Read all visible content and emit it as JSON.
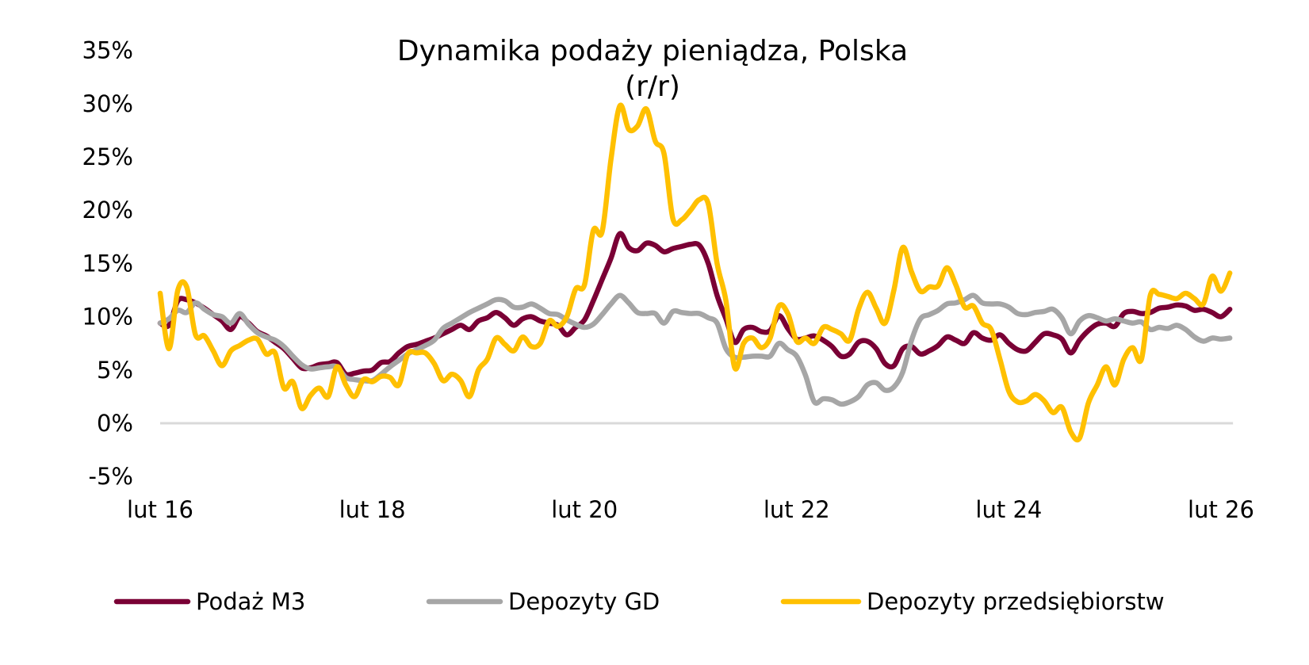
{
  "chart_data": {
    "type": "line",
    "title": "Dynamika podaży pieniądza, Polska",
    "subtitle": "(r/r)",
    "xlabel": "",
    "ylabel": "",
    "x_start": "2016-02",
    "x_end": "2026-03",
    "x_frequency": "monthly",
    "x_tick_labels": [
      "lut 16",
      "lut 18",
      "lut 20",
      "lut 22",
      "lut 24",
      "lut 26"
    ],
    "x_tick_dates": [
      "2016-02",
      "2018-02",
      "2020-02",
      "2022-02",
      "2024-02",
      "2026-02"
    ],
    "y_tick_labels": [
      "35%",
      "30%",
      "25%",
      "20%",
      "15%",
      "10%",
      "5%",
      "0%",
      "-5%"
    ],
    "y_tick_values": [
      35,
      30,
      25,
      20,
      15,
      10,
      5,
      0,
      -5
    ],
    "ylim": [
      -5,
      35
    ],
    "y_unit": "%",
    "grid": false,
    "zero_line": true,
    "legend_position": "bottom",
    "series": [
      {
        "name": "Podaż M3",
        "color": "#7a0035",
        "values": [
          9.4,
          9.2,
          11.5,
          11.6,
          11.3,
          10.8,
          10.2,
          9.6,
          8.8,
          10.0,
          9.4,
          8.6,
          8.2,
          7.6,
          7.0,
          6.1,
          5.2,
          5.2,
          5.5,
          5.6,
          5.7,
          4.6,
          4.7,
          4.9,
          5.0,
          5.7,
          5.8,
          6.6,
          7.2,
          7.4,
          7.7,
          8.0,
          8.4,
          8.8,
          9.2,
          8.8,
          9.6,
          9.9,
          10.4,
          9.9,
          9.2,
          9.8,
          10.0,
          9.6,
          9.4,
          9.2,
          8.3,
          9.0,
          9.7,
          11.5,
          13.5,
          15.5,
          17.8,
          16.5,
          16.2,
          16.9,
          16.7,
          16.1,
          16.4,
          16.6,
          16.8,
          16.7,
          15.0,
          12.0,
          9.8,
          7.6,
          8.8,
          9.0,
          8.6,
          8.7,
          10.1,
          8.9,
          7.9,
          8.0,
          8.2,
          7.8,
          7.2,
          6.3,
          6.5,
          7.6,
          7.7,
          7.0,
          5.6,
          5.4,
          7.0,
          7.2,
          6.5,
          6.8,
          7.3,
          8.1,
          7.8,
          7.5,
          8.5,
          8.0,
          7.8,
          8.3,
          7.5,
          6.9,
          6.8,
          7.6,
          8.4,
          8.3,
          7.9,
          6.6,
          7.8,
          8.7,
          9.3,
          9.4,
          9.1,
          10.3,
          10.5,
          10.3,
          10.4,
          10.8,
          10.9,
          11.1,
          11.0,
          10.6,
          10.7,
          10.4,
          10.0,
          10.7
        ]
      },
      {
        "name": "Depozyty GD",
        "color": "#a6a6a6",
        "values": [
          9.4,
          9.8,
          10.6,
          10.4,
          11.3,
          10.7,
          10.2,
          10.0,
          9.4,
          10.3,
          9.3,
          8.5,
          8.1,
          7.8,
          7.2,
          6.3,
          5.5,
          5.1,
          5.2,
          5.3,
          5.3,
          4.3,
          4.1,
          4.0,
          4.0,
          4.6,
          5.3,
          5.9,
          6.5,
          6.9,
          7.3,
          7.8,
          8.9,
          9.4,
          9.9,
          10.4,
          10.8,
          11.2,
          11.6,
          11.5,
          10.9,
          10.9,
          11.2,
          10.8,
          10.3,
          10.2,
          9.7,
          9.3,
          9.0,
          9.3,
          10.2,
          11.2,
          12.0,
          11.3,
          10.4,
          10.3,
          10.3,
          9.4,
          10.5,
          10.4,
          10.3,
          10.3,
          9.9,
          9.4,
          7.0,
          6.2,
          6.2,
          6.3,
          6.3,
          6.3,
          7.5,
          6.9,
          6.3,
          4.5,
          2.0,
          2.3,
          2.2,
          1.8,
          2.0,
          2.5,
          3.6,
          3.8,
          3.1,
          3.4,
          4.8,
          7.8,
          9.8,
          10.2,
          10.6,
          11.2,
          11.3,
          11.6,
          12.0,
          11.3,
          11.2,
          11.2,
          10.9,
          10.3,
          10.2,
          10.4,
          10.5,
          10.7,
          9.9,
          8.4,
          9.6,
          10.1,
          9.9,
          9.6,
          9.8,
          9.6,
          9.4,
          9.5,
          8.8,
          9.0,
          8.9,
          9.2,
          8.8,
          8.1,
          7.7,
          8.0,
          7.9,
          8.0
        ]
      },
      {
        "name": "Depozyty przedsiębiorstw",
        "color": "#ffc000",
        "values": [
          12.2,
          7.0,
          12.5,
          12.8,
          8.3,
          8.2,
          6.8,
          5.4,
          6.8,
          7.3,
          7.8,
          7.9,
          6.5,
          6.6,
          3.3,
          3.9,
          1.4,
          2.6,
          3.3,
          2.5,
          5.3,
          3.6,
          2.5,
          4.1,
          3.9,
          4.4,
          4.3,
          3.6,
          6.5,
          6.6,
          6.6,
          5.6,
          4.0,
          4.6,
          4.0,
          2.5,
          5.0,
          6.0,
          8.0,
          7.4,
          6.8,
          8.1,
          7.2,
          7.5,
          9.6,
          9.1,
          10.0,
          12.6,
          13.0,
          18.1,
          18.0,
          24.8,
          29.8,
          27.6,
          27.9,
          29.5,
          26.5,
          25.3,
          19.2,
          19.1,
          20.0,
          21.0,
          20.6,
          15.0,
          11.5,
          5.2,
          7.5,
          8.0,
          7.1,
          8.0,
          11.0,
          10.3,
          7.7,
          8.0,
          7.5,
          9.0,
          8.8,
          8.4,
          7.8,
          10.7,
          12.3,
          10.8,
          9.4,
          12.5,
          16.5,
          14.2,
          12.4,
          12.8,
          12.9,
          14.6,
          13.0,
          10.9,
          11.0,
          9.4,
          8.8,
          6.0,
          3.0,
          2.0,
          2.1,
          2.7,
          2.1,
          1.0,
          1.5,
          -0.8,
          -1.4,
          1.9,
          3.6,
          5.3,
          3.6,
          6.0,
          7.1,
          6.0,
          12.0,
          12.1,
          11.9,
          11.7,
          12.2,
          11.7,
          11.2,
          13.8,
          12.4,
          14.1
        ]
      }
    ]
  }
}
